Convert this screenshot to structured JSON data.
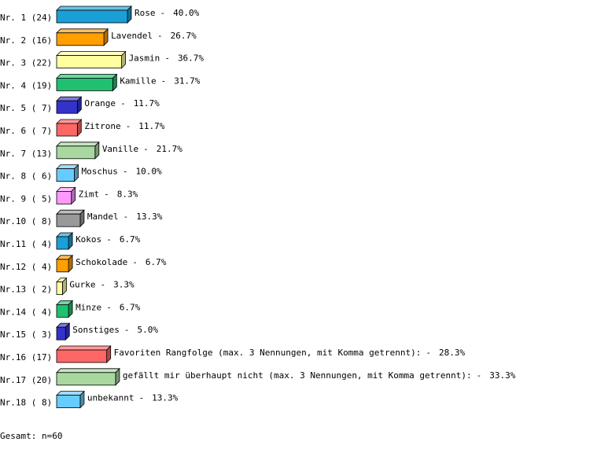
{
  "chart_data": {
    "type": "bar3d",
    "categories": [
      "Nr. 1 (24)",
      "Nr. 2 (16)",
      "Nr. 3 (22)",
      "Nr. 4 (19)",
      "Nr. 5 ( 7)",
      "Nr. 6 ( 7)",
      "Nr. 7 (13)",
      "Nr. 8 ( 6)",
      "Nr. 9 ( 5)",
      "Nr.10 ( 8)",
      "Nr.11 ( 4)",
      "Nr.12 ( 4)",
      "Nr.13 ( 2)",
      "Nr.14 ( 4)",
      "Nr.15 ( 3)",
      "Nr.16 (17)",
      "Nr.17 (20)",
      "Nr.18 ( 8)"
    ],
    "names": [
      "Rose",
      "Lavendel",
      "Jasmin",
      "Kamille",
      "Orange",
      "Zitrone",
      "Vanille",
      "Moschus",
      "Zimt",
      "Mandel",
      "Kokos",
      "Schokolade",
      "Gurke",
      "Minze",
      "Sonstiges",
      "Favoriten Rangfolge (max. 3 Nennungen, mit Komma getrennt):",
      "gefällt mir überhaupt nicht (max. 3 Nennungen, mit Komma getrennt):",
      "unbekannt"
    ],
    "separator": "-",
    "values": [
      40.0,
      26.7,
      36.7,
      31.7,
      11.7,
      11.7,
      21.7,
      10.0,
      8.3,
      13.3,
      6.7,
      6.7,
      3.3,
      6.7,
      5.0,
      28.3,
      33.3,
      13.3
    ],
    "value_labels": [
      "40.0%",
      "26.7%",
      "36.7%",
      "31.7%",
      "11.7%",
      "11.7%",
      "21.7%",
      "10.0%",
      "8.3%",
      "13.3%",
      "6.7%",
      "6.7%",
      "3.3%",
      "6.7%",
      "5.0%",
      "28.3%",
      "33.3%",
      "13.3%"
    ],
    "colors": [
      "#1a9fd6",
      "#ff9f00",
      "#ffffa0",
      "#20c070",
      "#3333cc",
      "#ff6666",
      "#a8d8a0",
      "#66ccff",
      "#ff99ff",
      "#999999",
      "#1a9fd6",
      "#ff9f00",
      "#ffffa0",
      "#20c070",
      "#3333cc",
      "#ff6666",
      "#a8d8a0",
      "#66ccff"
    ],
    "footer": "Gesamt: n=60"
  }
}
